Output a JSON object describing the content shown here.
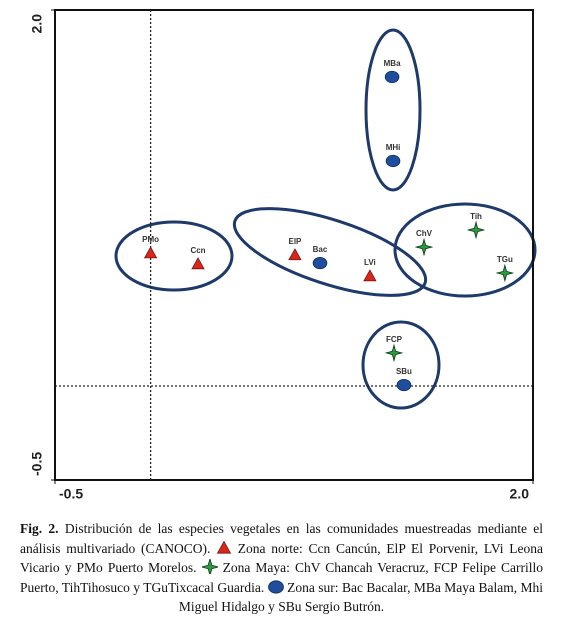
{
  "chart_data": {
    "type": "scatter",
    "xlim": [
      -0.5,
      2.0
    ],
    "ylim": [
      -0.5,
      2.0
    ],
    "xticks": [
      -0.5,
      {
        "value": 2,
        "label": "2.0"
      }
    ],
    "yticks": [
      -0.5,
      {
        "value": 2,
        "label": "2.0"
      }
    ],
    "origin_lines": true,
    "series": [
      {
        "name": "Zona norte: Ccn Cancún, ElP El Porvenir, LVi Leona Vicario y PMo Puerto Morelos.",
        "marker": "triangle",
        "color": "#d8261c",
        "labels": [
          "PMo",
          "Ccn",
          "ElP",
          "LVi"
        ],
        "x": [
          0.0,
          0.248,
          0.755,
          1.147
        ],
        "y": [
          0.707,
          0.649,
          0.697,
          0.585
        ]
      },
      {
        "name": "Zona Maya: ChV Chancah Veracruz, FCP Felipe Carrillo Puerto, TihTihosuco y TGuTixcacal Guardia.",
        "marker": "star",
        "color": "#2e9a3e",
        "labels": [
          "ChV",
          "Tih",
          "TGu",
          "FCP"
        ],
        "x": [
          1.43,
          1.702,
          1.853,
          1.273
        ],
        "y": [
          0.739,
          0.83,
          0.601,
          0.176
        ]
      },
      {
        "name": "Zona sur: Bac Bacalar, MBa Maya Balam, Mhi Miguel Hidalgo y SBu Sergio Butrón.",
        "marker": "circle",
        "color": "#1f4e9c",
        "labels": [
          "Bac",
          "MBa",
          "MHi",
          "SBu"
        ],
        "x": [
          0.886,
          1.263,
          1.268,
          1.325
        ],
        "y": [
          0.654,
          1.644,
          1.197,
          0.005
        ]
      }
    ]
  },
  "caption": {
    "label": "Fig. 2.",
    "text": "Distribución de las especies vegetales en las comunidades muestreadas mediante el análisis multivariado (CANOCO)."
  }
}
